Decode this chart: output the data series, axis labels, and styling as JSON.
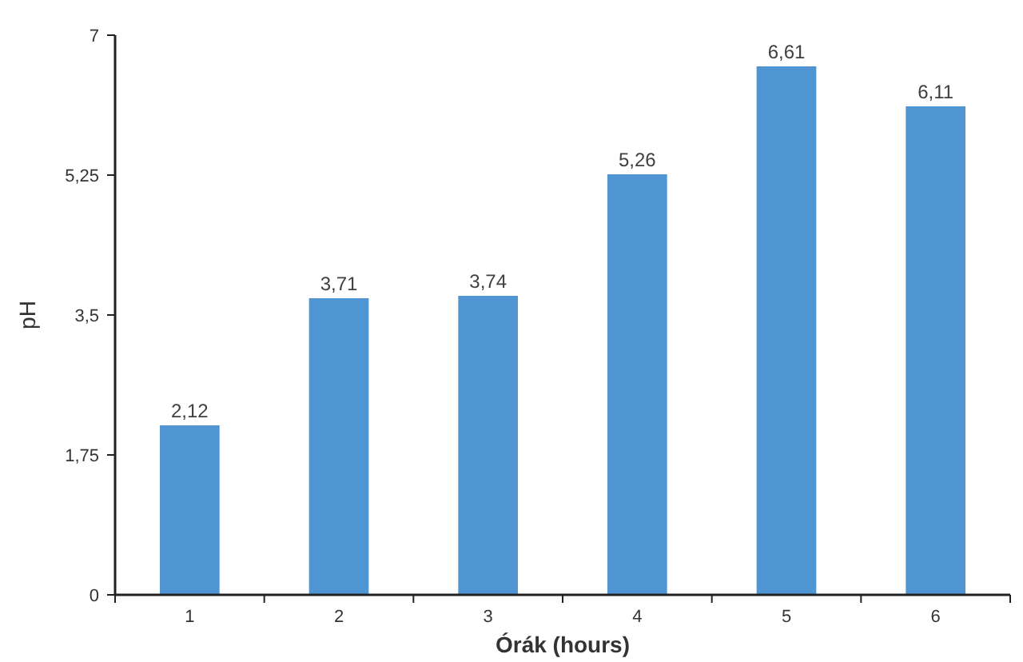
{
  "chart_data": {
    "type": "bar",
    "xlabel": "Órák (hours)",
    "ylabel": "pH",
    "categories": [
      "1",
      "2",
      "3",
      "4",
      "5",
      "6"
    ],
    "values": [
      2.12,
      3.71,
      3.74,
      5.26,
      6.61,
      6.11
    ],
    "value_labels": [
      "2,12",
      "3,71",
      "3,74",
      "5,26",
      "6,61",
      "6,11"
    ],
    "color": "#4f95d4",
    "ylim": [
      0,
      7
    ],
    "yticks": [
      {
        "value": 0,
        "label": "0"
      },
      {
        "value": 1.75,
        "label": "1,75"
      },
      {
        "value": 3.5,
        "label": "3,5"
      },
      {
        "value": 5.25,
        "label": "5,25"
      },
      {
        "value": 7,
        "label": "7"
      }
    ],
    "grid": false
  }
}
